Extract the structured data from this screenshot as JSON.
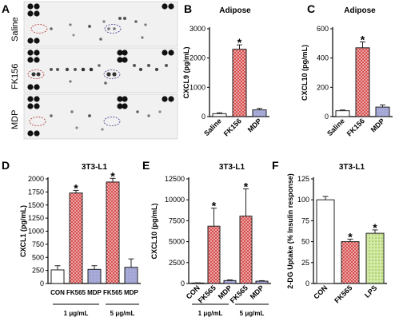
{
  "panels": {
    "a": {
      "label": "A",
      "rows": [
        "Saline",
        "FK156",
        "MDP"
      ]
    },
    "b": {
      "label": "B"
    },
    "c": {
      "label": "C"
    },
    "d": {
      "label": "D",
      "group_labels": [
        "1 μg/mL",
        "5 μg/mL"
      ]
    },
    "e": {
      "label": "E",
      "group_labels": [
        "1 μg/mL",
        "5 μg/mL"
      ]
    },
    "f": {
      "label": "F"
    }
  },
  "colors": {
    "white": "#ffffff",
    "red": "#e06060",
    "blue": "#9fa3d3",
    "axis": "#000000"
  },
  "chart_data": [
    {
      "id": "B",
      "type": "bar",
      "title": "Adipose",
      "xlabel": "",
      "ylabel": "CXCL9 (pg/mL)",
      "ylim": [
        0,
        3000
      ],
      "yticks": [
        0,
        1000,
        2000,
        3000
      ],
      "categories": [
        "Saline",
        "FK156",
        "MDP"
      ],
      "values": [
        100,
        2300,
        230
      ],
      "errors": [
        30,
        150,
        50
      ],
      "significant": [
        false,
        true,
        false
      ],
      "fills": [
        "white",
        "red",
        "blue"
      ],
      "rotated_labels": true
    },
    {
      "id": "C",
      "type": "bar",
      "title": "Adipose",
      "xlabel": "",
      "ylabel": "CXCL10 (pg/mL)",
      "ylim": [
        0,
        600
      ],
      "yticks": [
        0,
        200,
        400,
        600
      ],
      "categories": [
        "Saline",
        "FK156",
        "MDP"
      ],
      "values": [
        40,
        470,
        65
      ],
      "errors": [
        5,
        40,
        15
      ],
      "significant": [
        false,
        true,
        false
      ],
      "fills": [
        "white",
        "red",
        "blue"
      ],
      "rotated_labels": true
    },
    {
      "id": "D",
      "type": "bar",
      "title": "3T3-L1",
      "xlabel": "",
      "ylabel": "CXCL1   (pg/mL)",
      "ylim": [
        0,
        2000
      ],
      "yticks": [
        0,
        250,
        500,
        750,
        1000,
        1250,
        1500,
        1750,
        2000
      ],
      "categories": [
        "CON",
        "FK565",
        "MDP",
        "FK565",
        "MDP"
      ],
      "values": [
        260,
        1730,
        270,
        1940,
        310
      ],
      "errors": [
        80,
        50,
        70,
        70,
        160
      ],
      "significant": [
        false,
        true,
        false,
        true,
        false
      ],
      "fills": [
        "white",
        "red",
        "blue",
        "red",
        "blue"
      ],
      "rotated_labels": false
    },
    {
      "id": "E",
      "type": "bar",
      "title": "3T3-L1",
      "xlabel": "",
      "ylabel": "CXCL10  (pg/mL)",
      "ylim": [
        0,
        12500
      ],
      "yticks": [
        0,
        2500,
        5000,
        7500,
        10000,
        12500
      ],
      "categories": [
        "CON",
        "FK565",
        "MDP",
        "FK565",
        "MDP"
      ],
      "values": [
        60,
        6850,
        350,
        8050,
        280
      ],
      "errors": [
        20,
        2150,
        80,
        3250,
        60
      ],
      "significant": [
        false,
        true,
        false,
        true,
        false
      ],
      "fills": [
        "white",
        "red",
        "blue",
        "red",
        "blue"
      ],
      "rotated_labels": true
    },
    {
      "id": "F",
      "type": "bar",
      "title": "3T3-L1",
      "xlabel": "",
      "ylabel": "2-DG Uptake (% Insulin response)",
      "ylim": [
        0,
        125
      ],
      "yticks": [
        0,
        25,
        50,
        75,
        100,
        125
      ],
      "categories": [
        "CON",
        "FK565",
        "LPS"
      ],
      "values": [
        100,
        50,
        60
      ],
      "errors": [
        4,
        3,
        4
      ],
      "significant": [
        false,
        true,
        true
      ],
      "fills": [
        "white",
        "red",
        "green"
      ],
      "rotated_labels": true
    }
  ]
}
